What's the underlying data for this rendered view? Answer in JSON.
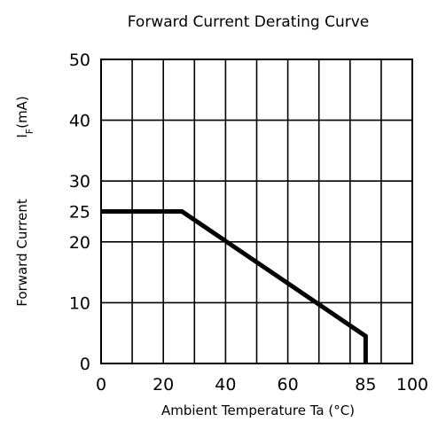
{
  "chart_data": {
    "type": "line",
    "title": "Forward Current Derating Curve",
    "xlabel": "Ambient Temperature Ta (°C)",
    "ylabel": "Forward Current",
    "ylabel_unit": "I",
    "ylabel_unit_sub": "F",
    "ylabel_unit_suffix": "(mA)",
    "xlim": [
      0,
      100
    ],
    "ylim": [
      0,
      50
    ],
    "x_ticks": [
      0,
      20,
      40,
      60,
      85,
      100
    ],
    "y_ticks": [
      0,
      10,
      20,
      25,
      30,
      40,
      50
    ],
    "x_grid": [
      0,
      10,
      20,
      30,
      40,
      50,
      60,
      70,
      80,
      90,
      100
    ],
    "y_grid": [
      0,
      10,
      20,
      30,
      40,
      50
    ],
    "grid": true,
    "series": [
      {
        "x": [
          0,
          26,
          85,
          85
        ],
        "y": [
          25,
          25,
          4.5,
          0
        ]
      }
    ]
  }
}
